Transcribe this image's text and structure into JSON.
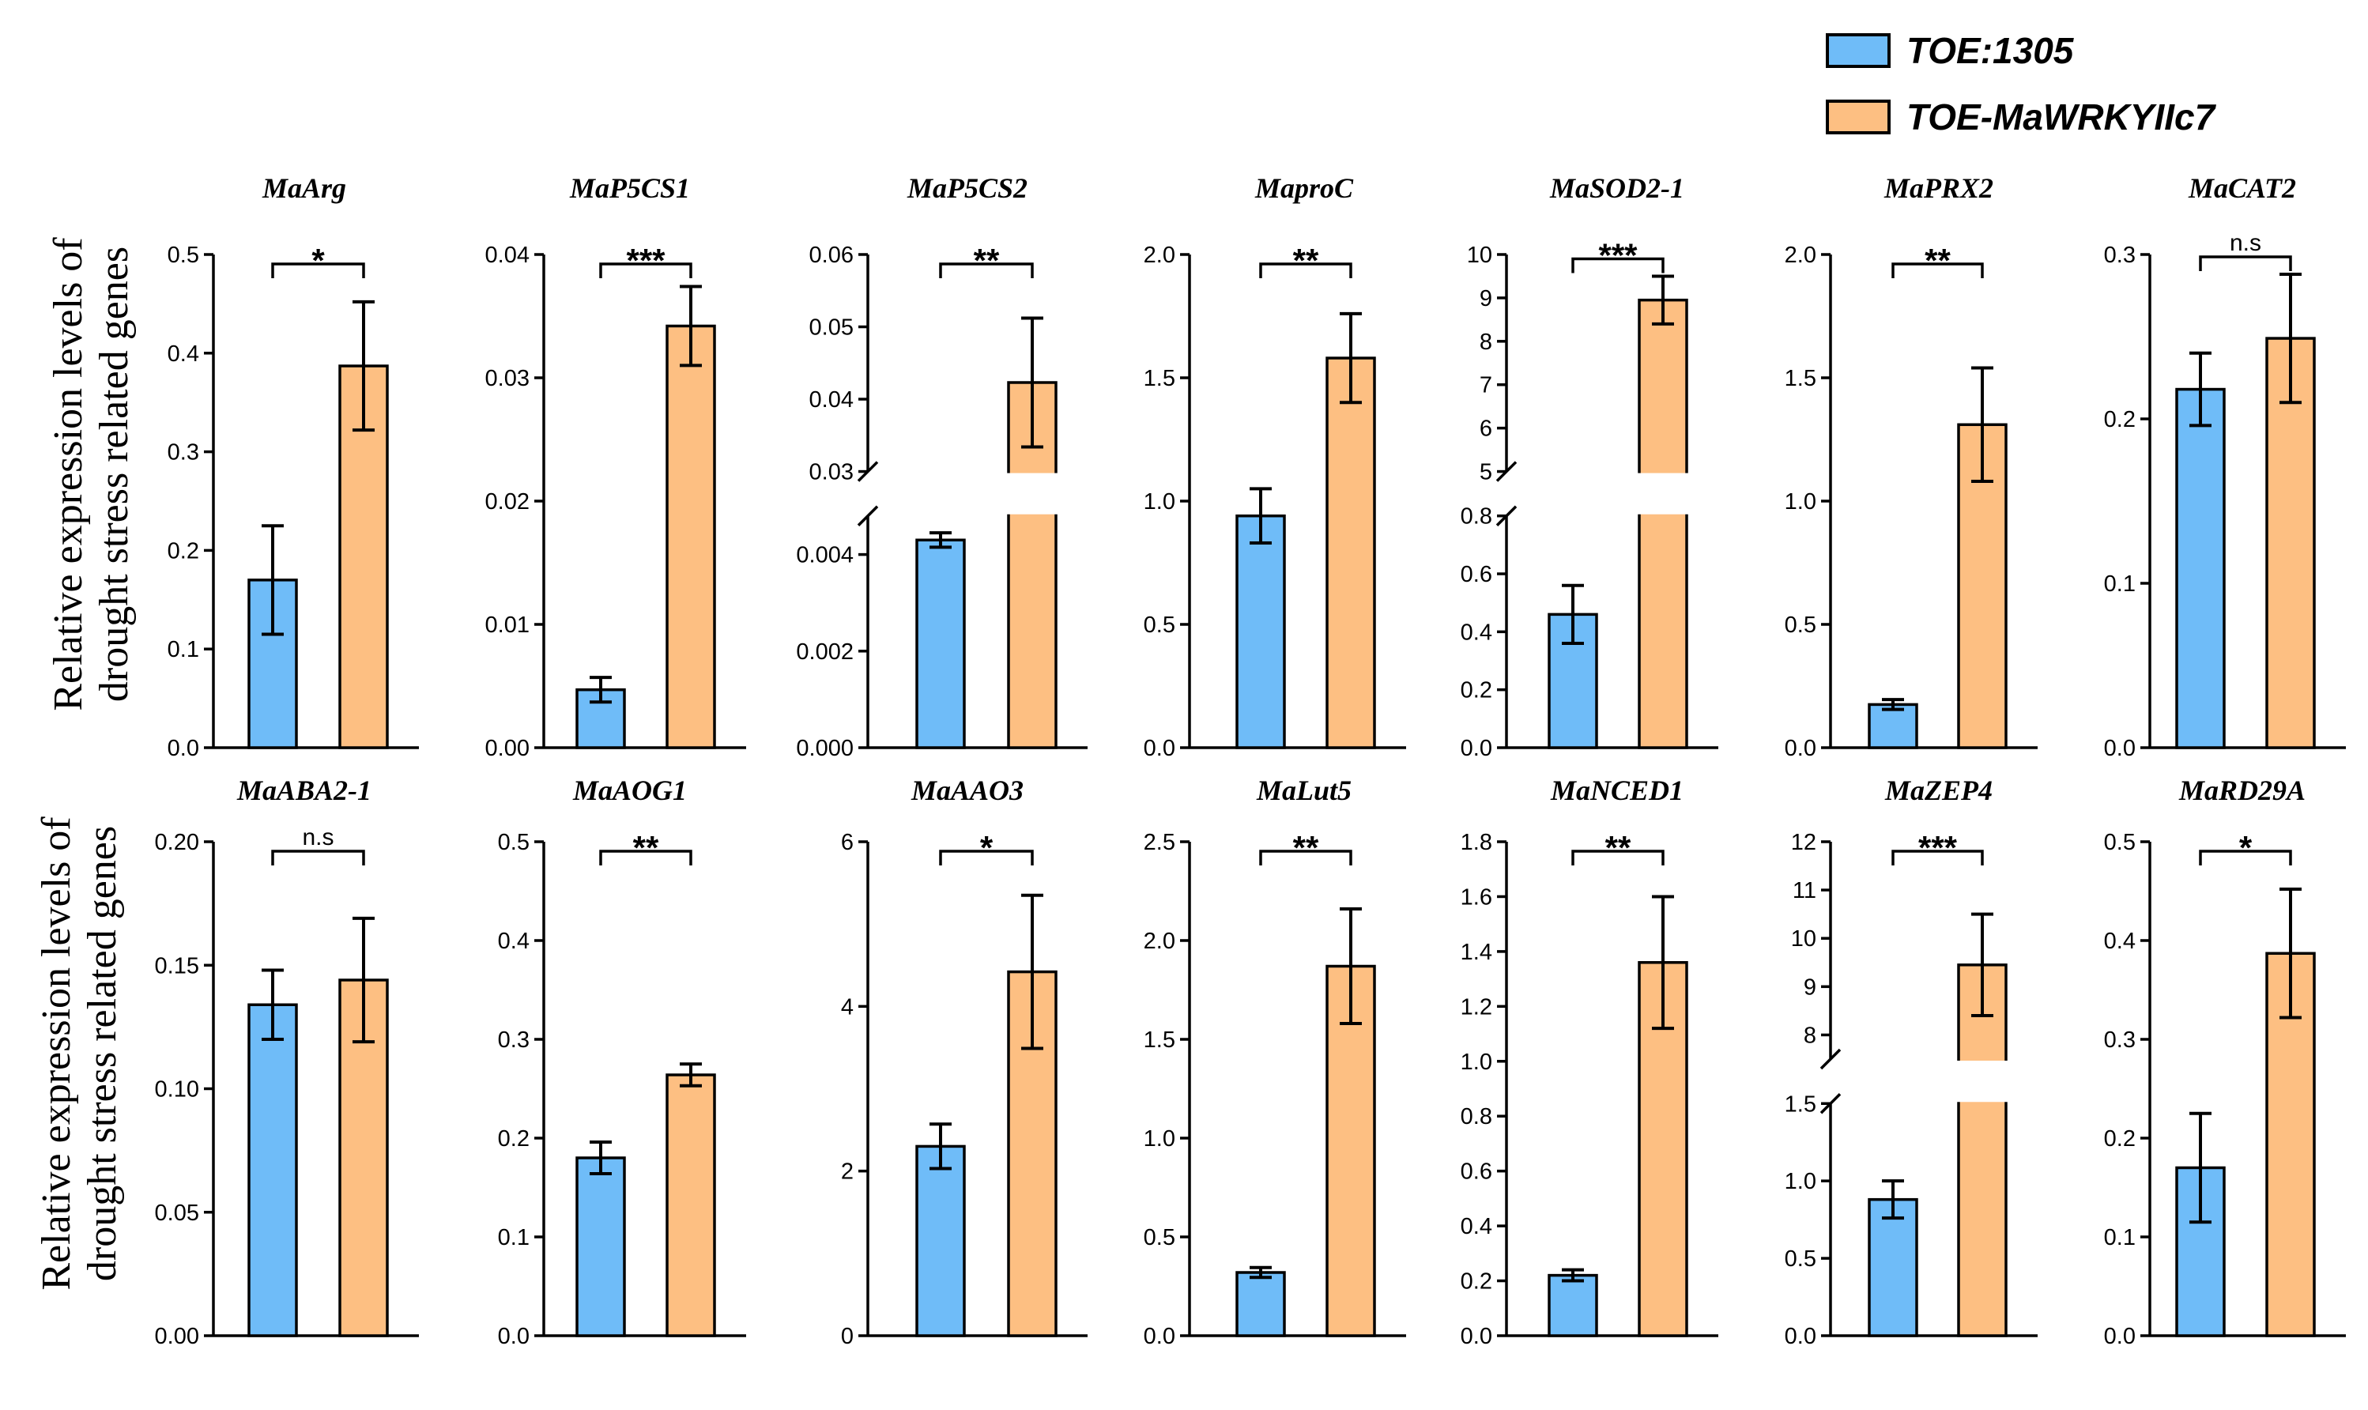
{
  "legend": [
    {
      "label": "TOE:1305",
      "color": "#6fbcf8"
    },
    {
      "label": "TOE-MaWRKYIIc7",
      "color": "#fdbf82"
    }
  ],
  "ylabels": {
    "row1": [
      "Relative expression levels of",
      "drought stress related genes"
    ],
    "row2": [
      "Relative expression levels of",
      "drought stress related genes"
    ]
  },
  "chart_data": [
    {
      "type": "bar",
      "title": "MaArg",
      "categories": [
        "TOE:1305",
        "TOE-MaWRKYIIc7"
      ],
      "values": [
        0.17,
        0.387
      ],
      "errors": [
        0.055,
        0.065
      ],
      "significance": "*",
      "ylim": [
        0,
        0.5
      ],
      "ticks": [
        0,
        0.1,
        0.2,
        0.3,
        0.4,
        0.5
      ],
      "tick_labels": [
        "0.0",
        "0.1",
        "0.2",
        "0.3",
        "0.4",
        "0.5"
      ]
    },
    {
      "type": "bar",
      "title": "MaP5CS1",
      "categories": [
        "TOE:1305",
        "TOE-MaWRKYIIc7"
      ],
      "values": [
        0.0047,
        0.0342
      ],
      "errors": [
        0.001,
        0.0032
      ],
      "significance": "***",
      "ylim": [
        0,
        0.04
      ],
      "ticks": [
        0,
        0.01,
        0.02,
        0.03,
        0.04
      ],
      "tick_labels": [
        "0.00",
        "0.01",
        "0.02",
        "0.03",
        "0.04"
      ]
    },
    {
      "type": "bar",
      "title": "MaP5CS2",
      "categories": [
        "TOE:1305",
        "TOE-MaWRKYIIc7"
      ],
      "values": [
        0.0043,
        0.0423
      ],
      "errors": [
        0.00015,
        0.0089
      ],
      "significance": "**",
      "broken_axis": {
        "lower": [
          0,
          0.0048
        ],
        "upper": [
          0.03,
          0.06
        ]
      },
      "ticks_lower": [
        0,
        0.002,
        0.004
      ],
      "tick_labels_lower": [
        "0.000",
        "0.002",
        "0.004"
      ],
      "ticks_upper": [
        0.03,
        0.04,
        0.05,
        0.06
      ],
      "tick_labels_upper": [
        "0.03",
        "0.04",
        "0.05",
        "0.06"
      ]
    },
    {
      "type": "bar",
      "title": "MaproC",
      "categories": [
        "TOE:1305",
        "TOE-MaWRKYIIc7"
      ],
      "values": [
        0.94,
        1.58
      ],
      "errors": [
        0.11,
        0.18
      ],
      "significance": "**",
      "ylim": [
        0,
        2.0
      ],
      "ticks": [
        0,
        0.5,
        1.0,
        1.5,
        2.0
      ],
      "tick_labels": [
        "0.0",
        "0.5",
        "1.0",
        "1.5",
        "2.0"
      ]
    },
    {
      "type": "bar",
      "title": "MaSOD2-1",
      "categories": [
        "TOE:1305",
        "TOE-MaWRKYIIc7"
      ],
      "values": [
        0.46,
        8.95
      ],
      "errors": [
        0.1,
        0.55
      ],
      "significance": "***",
      "broken_axis": {
        "lower": [
          0,
          0.8
        ],
        "upper": [
          5,
          10
        ]
      },
      "ticks_lower": [
        0,
        0.2,
        0.4,
        0.6,
        0.8
      ],
      "tick_labels_lower": [
        "0.0",
        "0.2",
        "0.4",
        "0.6",
        "0.8"
      ],
      "ticks_upper": [
        5,
        6,
        7,
        8,
        9,
        10
      ],
      "tick_labels_upper": [
        "5",
        "6",
        "7",
        "8",
        "9",
        "10"
      ]
    },
    {
      "type": "bar",
      "title": "MaPRX2",
      "categories": [
        "TOE:1305",
        "TOE-MaWRKYIIc7"
      ],
      "values": [
        0.175,
        1.31
      ],
      "errors": [
        0.02,
        0.23
      ],
      "significance": "**",
      "ylim": [
        0,
        2.0
      ],
      "ticks": [
        0,
        0.5,
        1.0,
        1.5,
        2.0
      ],
      "tick_labels": [
        "0.0",
        "0.5",
        "1.0",
        "1.5",
        "2.0"
      ]
    },
    {
      "type": "bar",
      "title": "MaCAT2",
      "categories": [
        "TOE:1305",
        "TOE-MaWRKYIIc7"
      ],
      "values": [
        0.218,
        0.249
      ],
      "errors": [
        0.022,
        0.039
      ],
      "significance": "n.s",
      "ylim": [
        0,
        0.3
      ],
      "ticks": [
        0,
        0.1,
        0.2,
        0.3
      ],
      "tick_labels": [
        "0.0",
        "0.1",
        "0.2",
        "0.3"
      ]
    },
    {
      "type": "bar",
      "title": "MaABA2-1",
      "categories": [
        "TOE:1305",
        "TOE-MaWRKYIIc7"
      ],
      "values": [
        0.134,
        0.144
      ],
      "errors": [
        0.014,
        0.025
      ],
      "significance": "n.s",
      "ylim": [
        0,
        0.2
      ],
      "ticks": [
        0,
        0.05,
        0.1,
        0.15,
        0.2
      ],
      "tick_labels": [
        "0.00",
        "0.05",
        "0.10",
        "0.15",
        "0.20"
      ]
    },
    {
      "type": "bar",
      "title": "MaAOG1",
      "categories": [
        "TOE:1305",
        "TOE-MaWRKYIIc7"
      ],
      "values": [
        0.18,
        0.264
      ],
      "errors": [
        0.016,
        0.011
      ],
      "significance": "**",
      "ylim": [
        0,
        0.5
      ],
      "ticks": [
        0,
        0.1,
        0.2,
        0.3,
        0.4,
        0.5
      ],
      "tick_labels": [
        "0.0",
        "0.1",
        "0.2",
        "0.3",
        "0.4",
        "0.5"
      ]
    },
    {
      "type": "bar",
      "title": "MaAAO3",
      "categories": [
        "TOE:1305",
        "TOE-MaWRKYIIc7"
      ],
      "values": [
        2.3,
        4.42
      ],
      "errors": [
        0.27,
        0.93
      ],
      "significance": "*",
      "ylim": [
        0,
        6
      ],
      "ticks": [
        0,
        2,
        4,
        6
      ],
      "tick_labels": [
        "0",
        "2",
        "4",
        "6"
      ]
    },
    {
      "type": "bar",
      "title": "MaLut5",
      "categories": [
        "TOE:1305",
        "TOE-MaWRKYIIc7"
      ],
      "values": [
        0.32,
        1.87
      ],
      "errors": [
        0.025,
        0.29
      ],
      "significance": "**",
      "ylim": [
        0,
        2.5
      ],
      "ticks": [
        0,
        0.5,
        1.0,
        1.5,
        2.0,
        2.5
      ],
      "tick_labels": [
        "0.0",
        "0.5",
        "1.0",
        "1.5",
        "2.0",
        "2.5"
      ]
    },
    {
      "type": "bar",
      "title": "MaNCED1",
      "categories": [
        "TOE:1305",
        "TOE-MaWRKYIIc7"
      ],
      "values": [
        0.22,
        1.36
      ],
      "errors": [
        0.02,
        0.24
      ],
      "significance": "**",
      "ylim": [
        0,
        1.8
      ],
      "ticks": [
        0,
        0.2,
        0.4,
        0.6,
        0.8,
        1.0,
        1.2,
        1.4,
        1.6,
        1.8
      ],
      "tick_labels": [
        "0.0",
        "0.2",
        "0.4",
        "0.6",
        "0.8",
        "1.0",
        "1.2",
        "1.4",
        "1.6",
        "1.8"
      ]
    },
    {
      "type": "bar",
      "title": "MaZEP4",
      "categories": [
        "TOE:1305",
        "TOE-MaWRKYIIc7"
      ],
      "values": [
        0.88,
        9.45
      ],
      "errors": [
        0.12,
        1.05
      ],
      "significance": "***",
      "broken_axis": {
        "lower": [
          0,
          1.5
        ],
        "upper": [
          7.5,
          12
        ]
      },
      "ticks_lower": [
        0,
        0.5,
        1.0,
        1.5
      ],
      "tick_labels_lower": [
        "0.0",
        "0.5",
        "1.0",
        "1.5"
      ],
      "ticks_upper": [
        8,
        9,
        10,
        11,
        12
      ],
      "tick_labels_upper": [
        "8",
        "9",
        "10",
        "11",
        "12"
      ]
    },
    {
      "type": "bar",
      "title": "MaRD29A",
      "categories": [
        "TOE:1305",
        "TOE-MaWRKYIIc7"
      ],
      "values": [
        0.17,
        0.387
      ],
      "errors": [
        0.055,
        0.065
      ],
      "significance": "*",
      "ylim": [
        0,
        0.5
      ],
      "ticks": [
        0,
        0.1,
        0.2,
        0.3,
        0.4,
        0.5
      ],
      "tick_labels": [
        "0.0",
        "0.1",
        "0.2",
        "0.3",
        "0.4",
        "0.5"
      ]
    }
  ]
}
